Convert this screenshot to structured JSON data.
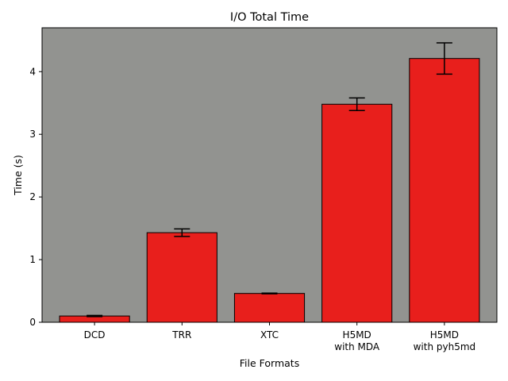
{
  "chart_data": {
    "type": "bar",
    "title": "I/O Total Time",
    "xlabel": "File Formats",
    "ylabel": "Time (s)",
    "ylim": [
      0,
      4.7
    ],
    "yticks": [
      0,
      1,
      2,
      3,
      4
    ],
    "categories": [
      [
        "DCD"
      ],
      [
        "TRR"
      ],
      [
        "XTC"
      ],
      [
        "H5MD",
        "with MDA"
      ],
      [
        "H5MD",
        "with pyh5md"
      ]
    ],
    "values": [
      0.1,
      1.43,
      0.46,
      3.48,
      4.21
    ],
    "errors": [
      0.01,
      0.06,
      0.005,
      0.1,
      0.25
    ],
    "grid": false,
    "legend": "none",
    "colors": {
      "bar_fill": "#e81f1c",
      "bar_edge": "#000000",
      "plot_background": "#929390",
      "error_bar": "#000000"
    }
  }
}
